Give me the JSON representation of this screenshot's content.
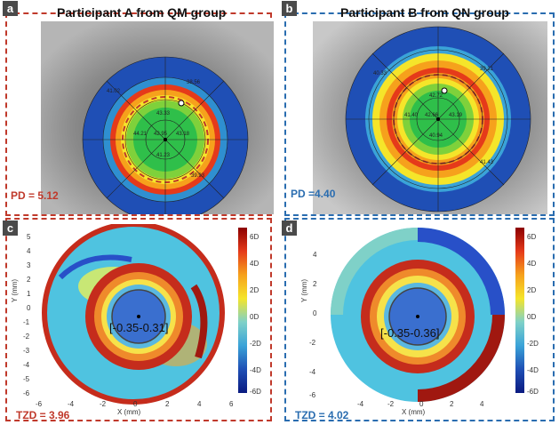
{
  "colors": {
    "qm_accent": "#c0392b",
    "qn_accent": "#2a6db0",
    "topo_bg": "#7a7a7a"
  },
  "panels": {
    "a": {
      "letter": "a",
      "title": "Participant A from QM group",
      "pd": "PD = 5.12"
    },
    "b": {
      "letter": "b",
      "title": "Participant B from QN group",
      "pd": "PD =4.40"
    },
    "c": {
      "letter": "c",
      "tzd": "TZD = 3.96",
      "range": "[-0.35-0.31]"
    },
    "d": {
      "letter": "d",
      "tzd": "TZD = 4.02",
      "range": "[-0.35-0.36]"
    }
  },
  "maps": {
    "xlabel": "X (mm)",
    "ylabel": "Y (mm)",
    "c_xticks": [
      "-6",
      "-4",
      "-2",
      "0",
      "2",
      "4",
      "6"
    ],
    "c_yticks": [
      "5",
      "4",
      "3",
      "2",
      "1",
      "0",
      "-1",
      "-2",
      "-3",
      "-4",
      "-5",
      "-6"
    ],
    "d_xticks": [
      "-4",
      "-2",
      "0",
      "2",
      "4"
    ],
    "d_yticks": [
      "4",
      "2",
      "0",
      "-2",
      "-4",
      "-6"
    ],
    "cbar_ticks": [
      "6D",
      "4D",
      "2D",
      "0D",
      "-2D",
      "-4D",
      "-6D"
    ]
  },
  "topo_numbers": {
    "a": [
      "42.95",
      "43.18",
      "44.21",
      "43.33",
      "41.23",
      "38.56",
      "41.02",
      "39.93"
    ],
    "b": [
      "42.66",
      "43.19",
      "41.40",
      "42.72",
      "40.94",
      "39.31",
      "40.33",
      "41.43"
    ]
  }
}
